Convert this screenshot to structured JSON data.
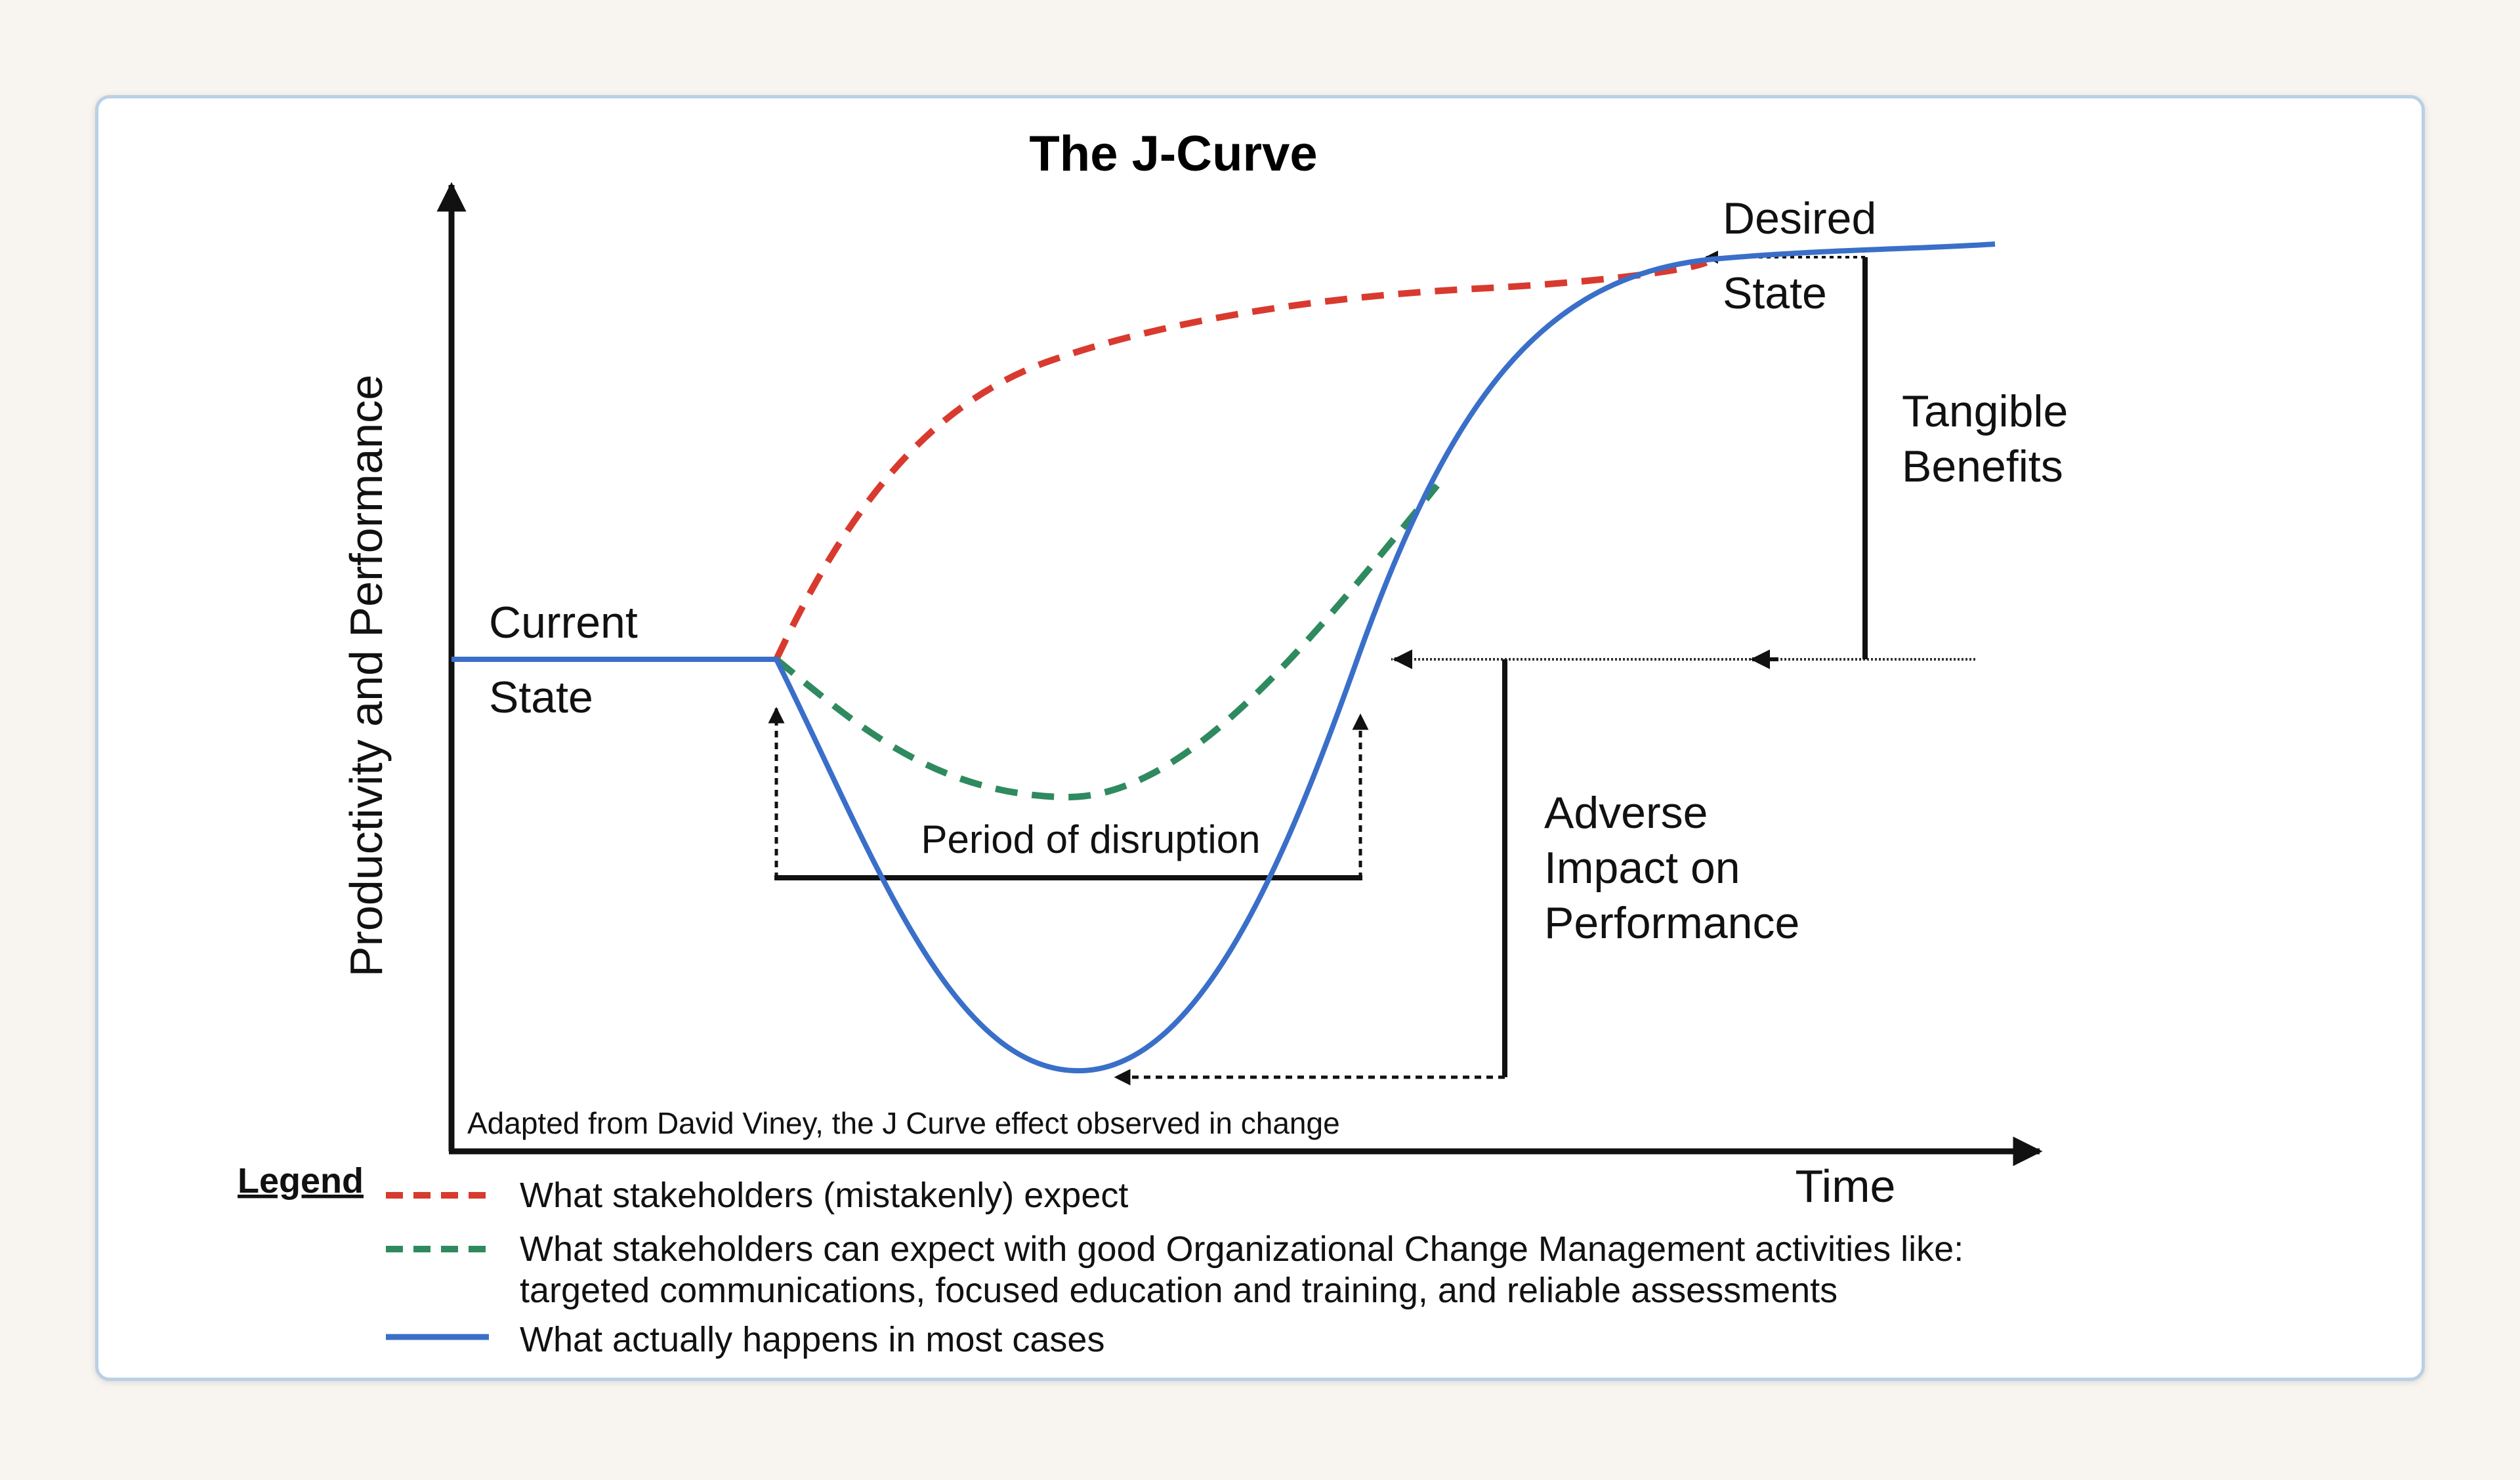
{
  "title": "The J-Curve",
  "y_axis_label": "Productivity and Performance",
  "x_axis_label": "Time",
  "labels": {
    "current_state_line1": "Current",
    "current_state_line2": "State",
    "desired_state_line1": "Desired",
    "desired_state_line2": "State",
    "tangible_benefits_line1": "Tangible",
    "tangible_benefits_line2": "Benefits",
    "adverse_line1": "Adverse",
    "adverse_line2": "Impact on",
    "adverse_line3": "Performance",
    "period_of_disruption": "Period of disruption"
  },
  "credit": "Adapted from David Viney, the J Curve effect observed in change",
  "legend": {
    "heading": "Legend",
    "items": [
      {
        "color": "#d93a2f",
        "style": "dashed",
        "text": "What stakeholders (mistakenly) expect"
      },
      {
        "color": "#2f8a5f",
        "style": "dashed",
        "text": "What stakeholders can expect with good Organizational Change Management activities like:",
        "text2": "targeted communications, focused education and training, and reliable assessments"
      },
      {
        "color": "#3a6fc9",
        "style": "solid",
        "text": "What actually happens in most cases"
      }
    ]
  },
  "colors": {
    "expect": "#d93a2f",
    "ocm": "#2f8a5f",
    "actual": "#3a6fc9",
    "axis": "#111111"
  }
}
